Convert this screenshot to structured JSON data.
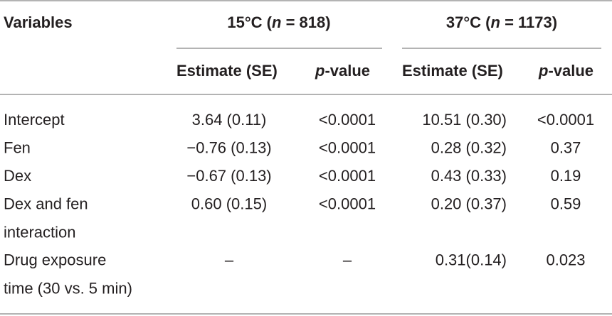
{
  "header": {
    "variables": "Variables",
    "groups": [
      {
        "prefix": "15°C (",
        "italic": "n",
        "suffix": " = 818)"
      },
      {
        "prefix": "37°C (",
        "italic": "n",
        "suffix": " = 1173)"
      }
    ],
    "subheaders": [
      {
        "text": "Estimate (SE)"
      },
      {
        "italic": "p",
        "suffix": "-value"
      },
      {
        "text": "Estimate (SE)"
      },
      {
        "italic": "p",
        "suffix": "-value"
      }
    ]
  },
  "rows": [
    {
      "label": [
        "Intercept"
      ],
      "cells": [
        "3.64 (0.11)",
        "<0.0001",
        "10.51 (0.30)",
        "<0.0001"
      ]
    },
    {
      "label": [
        "Fen"
      ],
      "cells": [
        "−0.76 (0.13)",
        "<0.0001",
        "0.28 (0.32)",
        "0.37"
      ]
    },
    {
      "label": [
        "Dex"
      ],
      "cells": [
        "−0.67 (0.13)",
        "<0.0001",
        "0.43 (0.33)",
        "0.19"
      ]
    },
    {
      "label": [
        "Dex and fen",
        "interaction"
      ],
      "cells": [
        "0.60 (0.15)",
        "<0.0001",
        "0.20 (0.37)",
        "0.59"
      ]
    },
    {
      "label": [
        "Drug exposure",
        "time (30 vs. 5 min)"
      ],
      "cells": [
        "–",
        "–",
        "0.31(0.14)",
        "0.023"
      ]
    }
  ]
}
